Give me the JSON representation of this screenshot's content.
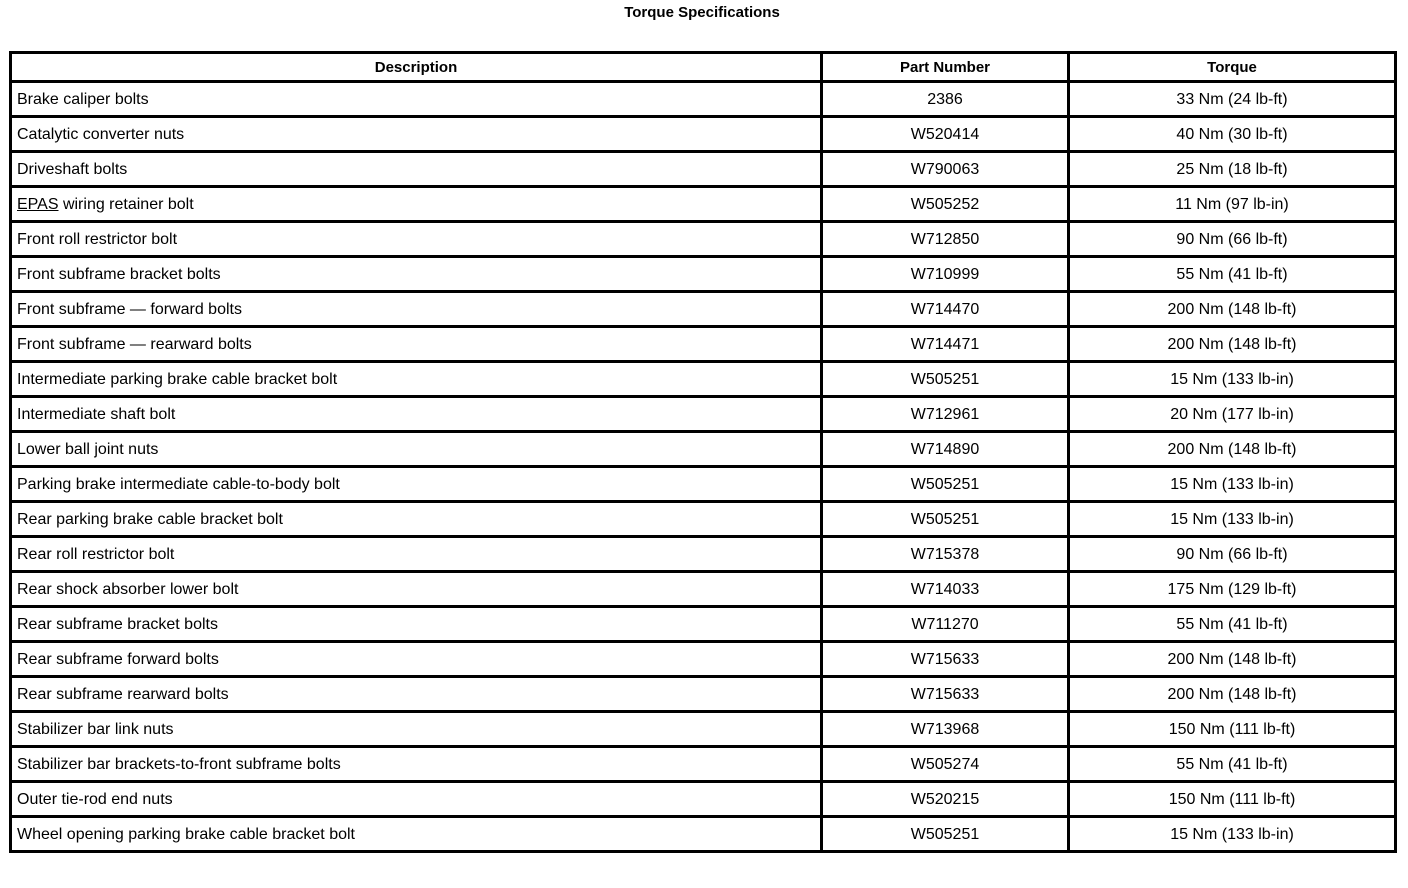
{
  "title": "Torque Specifications",
  "columns": [
    "Description",
    "Part Number",
    "Torque"
  ],
  "rows": [
    {
      "pre": "",
      "link": "",
      "description": "Brake caliper bolts",
      "part": "2386",
      "torque": "33 Nm (24 lb-ft)"
    },
    {
      "pre": "",
      "link": "",
      "description": "Catalytic converter nuts",
      "part": "W520414",
      "torque": "40 Nm (30 lb-ft)"
    },
    {
      "pre": "",
      "link": "",
      "description": "Driveshaft bolts",
      "part": "W790063",
      "torque": "25 Nm (18 lb-ft)"
    },
    {
      "pre": "",
      "link": "EPAS",
      "description": " wiring retainer bolt",
      "part": "W505252",
      "torque": "11 Nm (97 lb-in)"
    },
    {
      "pre": "",
      "link": "",
      "description": "Front roll restrictor bolt",
      "part": "W712850",
      "torque": "90 Nm (66 lb-ft)"
    },
    {
      "pre": "",
      "link": "",
      "description": "Front subframe bracket bolts",
      "part": "W710999",
      "torque": "55 Nm (41 lb-ft)"
    },
    {
      "pre": "",
      "link": "",
      "description": "Front subframe — forward bolts",
      "part": "W714470",
      "torque": "200 Nm (148 lb-ft)"
    },
    {
      "pre": "",
      "link": "",
      "description": "Front subframe — rearward bolts",
      "part": "W714471",
      "torque": "200 Nm (148 lb-ft)"
    },
    {
      "pre": "",
      "link": "",
      "description": "Intermediate parking brake cable bracket bolt",
      "part": "W505251",
      "torque": "15 Nm (133 lb-in)"
    },
    {
      "pre": "",
      "link": "",
      "description": "Intermediate shaft bolt",
      "part": "W712961",
      "torque": "20 Nm (177 lb-in)"
    },
    {
      "pre": "",
      "link": "",
      "description": "Lower ball joint nuts",
      "part": "W714890",
      "torque": "200 Nm (148 lb-ft)"
    },
    {
      "pre": "",
      "link": "",
      "description": "Parking brake intermediate cable-to-body bolt",
      "part": "W505251",
      "torque": "15 Nm (133 lb-in)"
    },
    {
      "pre": "",
      "link": "",
      "description": "Rear parking brake cable bracket bolt",
      "part": "W505251",
      "torque": "15 Nm (133 lb-in)"
    },
    {
      "pre": "",
      "link": "",
      "description": "Rear roll restrictor bolt",
      "part": "W715378",
      "torque": "90 Nm (66 lb-ft)"
    },
    {
      "pre": "",
      "link": "",
      "description": "Rear shock absorber lower bolt",
      "part": "W714033",
      "torque": "175 Nm (129 lb-ft)"
    },
    {
      "pre": "",
      "link": "",
      "description": "Rear subframe bracket bolts",
      "part": "W711270",
      "torque": "55 Nm (41 lb-ft)"
    },
    {
      "pre": "",
      "link": "",
      "description": "Rear subframe forward bolts",
      "part": "W715633",
      "torque": "200 Nm (148 lb-ft)"
    },
    {
      "pre": "",
      "link": "",
      "description": "Rear subframe rearward bolts",
      "part": "W715633",
      "torque": "200 Nm (148 lb-ft)"
    },
    {
      "pre": "",
      "link": "",
      "description": "Stabilizer bar link nuts",
      "part": "W713968",
      "torque": "150 Nm (111 lb-ft)"
    },
    {
      "pre": "",
      "link": "",
      "description": "Stabilizer bar brackets-to-front subframe bolts",
      "part": "W505274",
      "torque": "55 Nm (41 lb-ft)"
    },
    {
      "pre": "",
      "link": "",
      "description": "Outer tie-rod end nuts",
      "part": "W520215",
      "torque": "150 Nm (111 lb-ft)"
    },
    {
      "pre": "",
      "link": "",
      "description": "Wheel opening parking brake cable bracket bolt",
      "part": "W505251",
      "torque": "15 Nm (133 lb-in)"
    }
  ]
}
